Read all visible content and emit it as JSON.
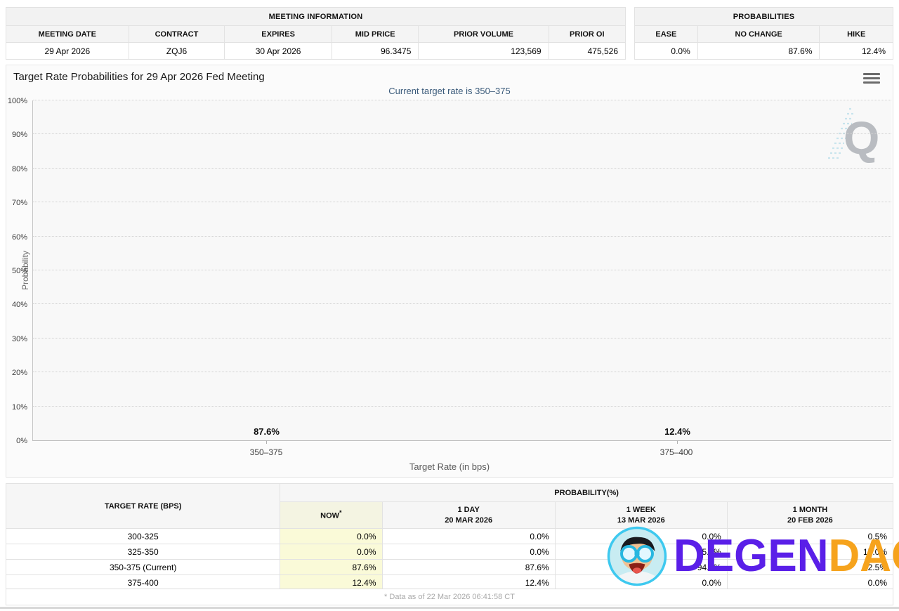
{
  "meeting_info": {
    "title": "MEETING INFORMATION",
    "headers": [
      "MEETING DATE",
      "CONTRACT",
      "EXPIRES",
      "MID PRICE",
      "PRIOR VOLUME",
      "PRIOR OI"
    ],
    "values": [
      "29 Apr 2026",
      "ZQJ6",
      "30 Apr 2026",
      "96.3475",
      "123,569",
      "475,526"
    ]
  },
  "probabilities_summary": {
    "title": "PROBABILITIES",
    "headers": [
      "EASE",
      "NO CHANGE",
      "HIKE"
    ],
    "values": [
      "0.0%",
      "87.6%",
      "12.4%"
    ]
  },
  "chart_data": {
    "type": "bar",
    "title": "Target Rate Probabilities for 29 Apr 2026 Fed Meeting",
    "subtitle": "Current target rate is 350–375",
    "categories": [
      "350–375",
      "375–400"
    ],
    "values": [
      87.6,
      12.4
    ],
    "bar_labels": [
      "87.6%",
      "12.4%"
    ],
    "xlabel": "Target Rate (in bps)",
    "ylabel": "Probability",
    "ylim": [
      0,
      100
    ],
    "yticks": [
      "0%",
      "10%",
      "20%",
      "30%",
      "40%",
      "50%",
      "60%",
      "70%",
      "80%",
      "90%",
      "100%"
    ],
    "grid": "dotted-horizontal",
    "legend": "none",
    "bar_color": "#2d7fb8",
    "watermark_letter": "Q"
  },
  "bottom_table": {
    "col1_header": "TARGET RATE (BPS)",
    "group_header": "PROBABILITY(%)",
    "sub_headers": [
      {
        "label": "NOW",
        "sup": "*",
        "date": ""
      },
      {
        "label": "1 DAY",
        "sup": "",
        "date": "20 MAR 2026"
      },
      {
        "label": "1 WEEK",
        "sup": "",
        "date": "13 MAR 2026"
      },
      {
        "label": "1 MONTH",
        "sup": "",
        "date": "20 FEB 2026"
      }
    ],
    "rows": [
      {
        "rate": "300-325",
        "now": "0.0%",
        "day1": "0.0%",
        "week1": "0.0%",
        "month1": "0.5%"
      },
      {
        "rate": "325-350",
        "now": "0.0%",
        "day1": "0.0%",
        "week1": "5.9%",
        "month1": "17.0%"
      },
      {
        "rate": "350-375 (Current)",
        "now": "87.6%",
        "day1": "87.6%",
        "week1": "94.1%",
        "month1": "82.5%"
      },
      {
        "rate": "375-400",
        "now": "12.4%",
        "day1": "12.4%",
        "week1": "0.0%",
        "month1": "0.0%"
      }
    ],
    "footnote": "* Data as of 22 Mar 2026 06:41:58 CT"
  },
  "watermark_overlay": {
    "text1": "DEGEN",
    "text2": "DAO!",
    "color1": "#5a1fe8",
    "color2": "#f6a31d"
  },
  "colors": {
    "bar": "#2d7fb8",
    "subtitle": "#3a5a7a",
    "now_column_bg": "#fafad8",
    "header_bg": "#f4f4f4"
  }
}
